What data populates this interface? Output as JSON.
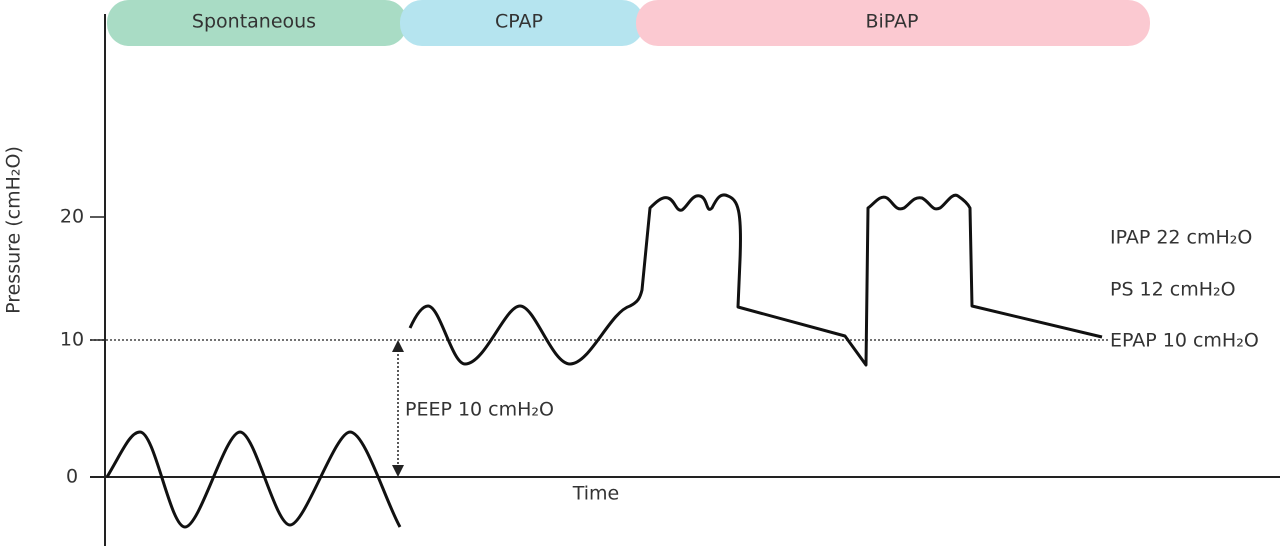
{
  "modes": [
    "Spontaneous",
    "CPAP",
    "BiPAP"
  ],
  "axis": {
    "y_label": "Pressure (cmH₂O)",
    "x_label": "Time",
    "yticks": [
      0,
      10,
      20
    ]
  },
  "annotations": {
    "peep": "PEEP 10 cmH₂O",
    "ipap": "IPAP 22 cmH₂O",
    "ps": "PS 12 cmH₂O",
    "epap": "EPAP 10 cmH₂O"
  }
}
